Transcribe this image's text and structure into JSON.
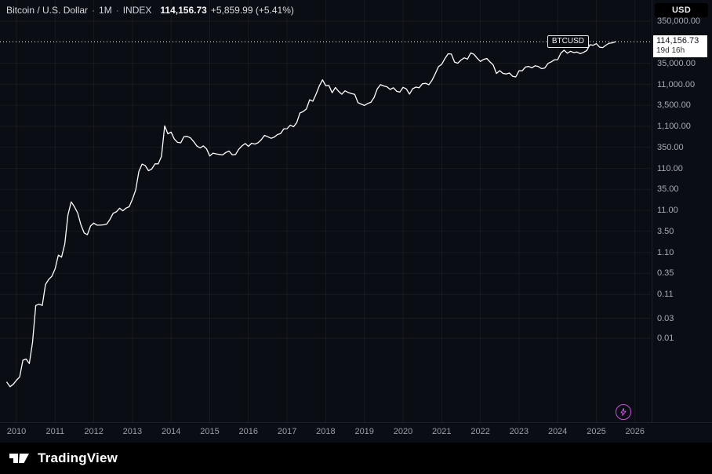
{
  "header": {
    "symbol_title": "Bitcoin / U.S. Dollar",
    "sep": "·",
    "interval": "1M",
    "source": "INDEX",
    "last_price": "114,156.73",
    "change": "+5,859.99 (+5.41%)"
  },
  "currency_button": {
    "label": "USD"
  },
  "price_label": {
    "symbol": "BTCUSD",
    "value": "114,156.73",
    "countdown": "19d 16h"
  },
  "price_axis": {
    "labels": [
      "350,000.00",
      "35,000.00",
      "11,000.00",
      "3,500.00",
      "1,100.00",
      "350.00",
      "110.00",
      "35.00",
      "11.00",
      "3.50",
      "1.10",
      "0.35",
      "0.11",
      "0.03",
      "0.01"
    ]
  },
  "time_axis": {
    "labels": [
      "2010",
      "2011",
      "2012",
      "2013",
      "2014",
      "2015",
      "2016",
      "2017",
      "2018",
      "2019",
      "2020",
      "2021",
      "2022",
      "2023",
      "2024",
      "2025",
      "2026"
    ]
  },
  "logo": {
    "text": "TradingView"
  },
  "icons": {
    "lightning": "lightning-bolt-outline",
    "logo_mark": "tradingview-17-monogram"
  },
  "colors": {
    "background": "#0b0d14",
    "line": "#ffffff",
    "grid": "rgba(255,255,255,0.055)",
    "axis_text": "#a8abb5",
    "label_bg": "#ffffff",
    "label_text": "#10131a",
    "accent_purple": "#cb4fdd"
  },
  "chart_data": {
    "type": "line",
    "title": "Bitcoin / U.S. Dollar · 1M · INDEX",
    "y_scale": "log",
    "x_start": "2009-10",
    "x_end": "2025-07",
    "interval": "1M",
    "ylim": [
      0.005,
      500000
    ],
    "last": 114156.73,
    "values": [
      0.0009,
      0.0007,
      0.0008,
      0.001,
      0.0012,
      0.003,
      0.0032,
      0.0025,
      0.008,
      0.06,
      0.065,
      0.06,
      0.19,
      0.25,
      0.3,
      0.45,
      0.95,
      0.85,
      1.75,
      8.7,
      17.5,
      13.5,
      9.5,
      5.0,
      3.2,
      2.9,
      4.7,
      5.5,
      4.9,
      4.9,
      5.0,
      5.2,
      6.7,
      9.4,
      10.2,
      12.4,
      10.8,
      12.5,
      13.5,
      20.4,
      33.4,
      93,
      139,
      128,
      97,
      106,
      141,
      141,
      211,
      1130,
      732,
      806,
      550,
      458,
      446,
      627,
      635,
      589,
      478,
      375,
      338,
      378,
      320,
      217,
      254,
      244,
      236,
      230,
      263,
      284,
      230,
      236,
      314,
      378,
      430,
      368,
      437,
      416,
      448,
      531,
      673,
      624,
      574,
      609,
      700,
      745,
      964,
      970,
      1180,
      1080,
      1350,
      2290,
      2480,
      2875,
      4735,
      4360,
      6450,
      10100,
      14100,
      10200,
      10300,
      6930,
      9240,
      7500,
      6400,
      7730,
      7030,
      6620,
      6340,
      4040,
      3740,
      3460,
      3850,
      4100,
      5320,
      8560,
      10800,
      10080,
      9630,
      8310,
      9150,
      7560,
      7190,
      9350,
      8600,
      6440,
      8630,
      9450,
      9140,
      11350,
      11650,
      10780,
      13800,
      19700,
      29000,
      33100,
      45200,
      58800,
      57750,
      37300,
      35000,
      41600,
      47100,
      43800,
      61300,
      57000,
      46200,
      38500,
      43200,
      45500,
      37650,
      31800,
      19950,
      23300,
      20050,
      19400,
      20500,
      17150,
      16550,
      23100,
      23150,
      28450,
      29250,
      27200,
      30450,
      29230,
      25940,
      26960,
      34650,
      37700,
      42250,
      42550,
      61200,
      71300,
      60600,
      67500,
      62700,
      64600,
      58950,
      63300,
      70200,
      96400,
      93400,
      102400,
      84350,
      82550,
      94200,
      104600,
      107100,
      114156.73
    ]
  }
}
